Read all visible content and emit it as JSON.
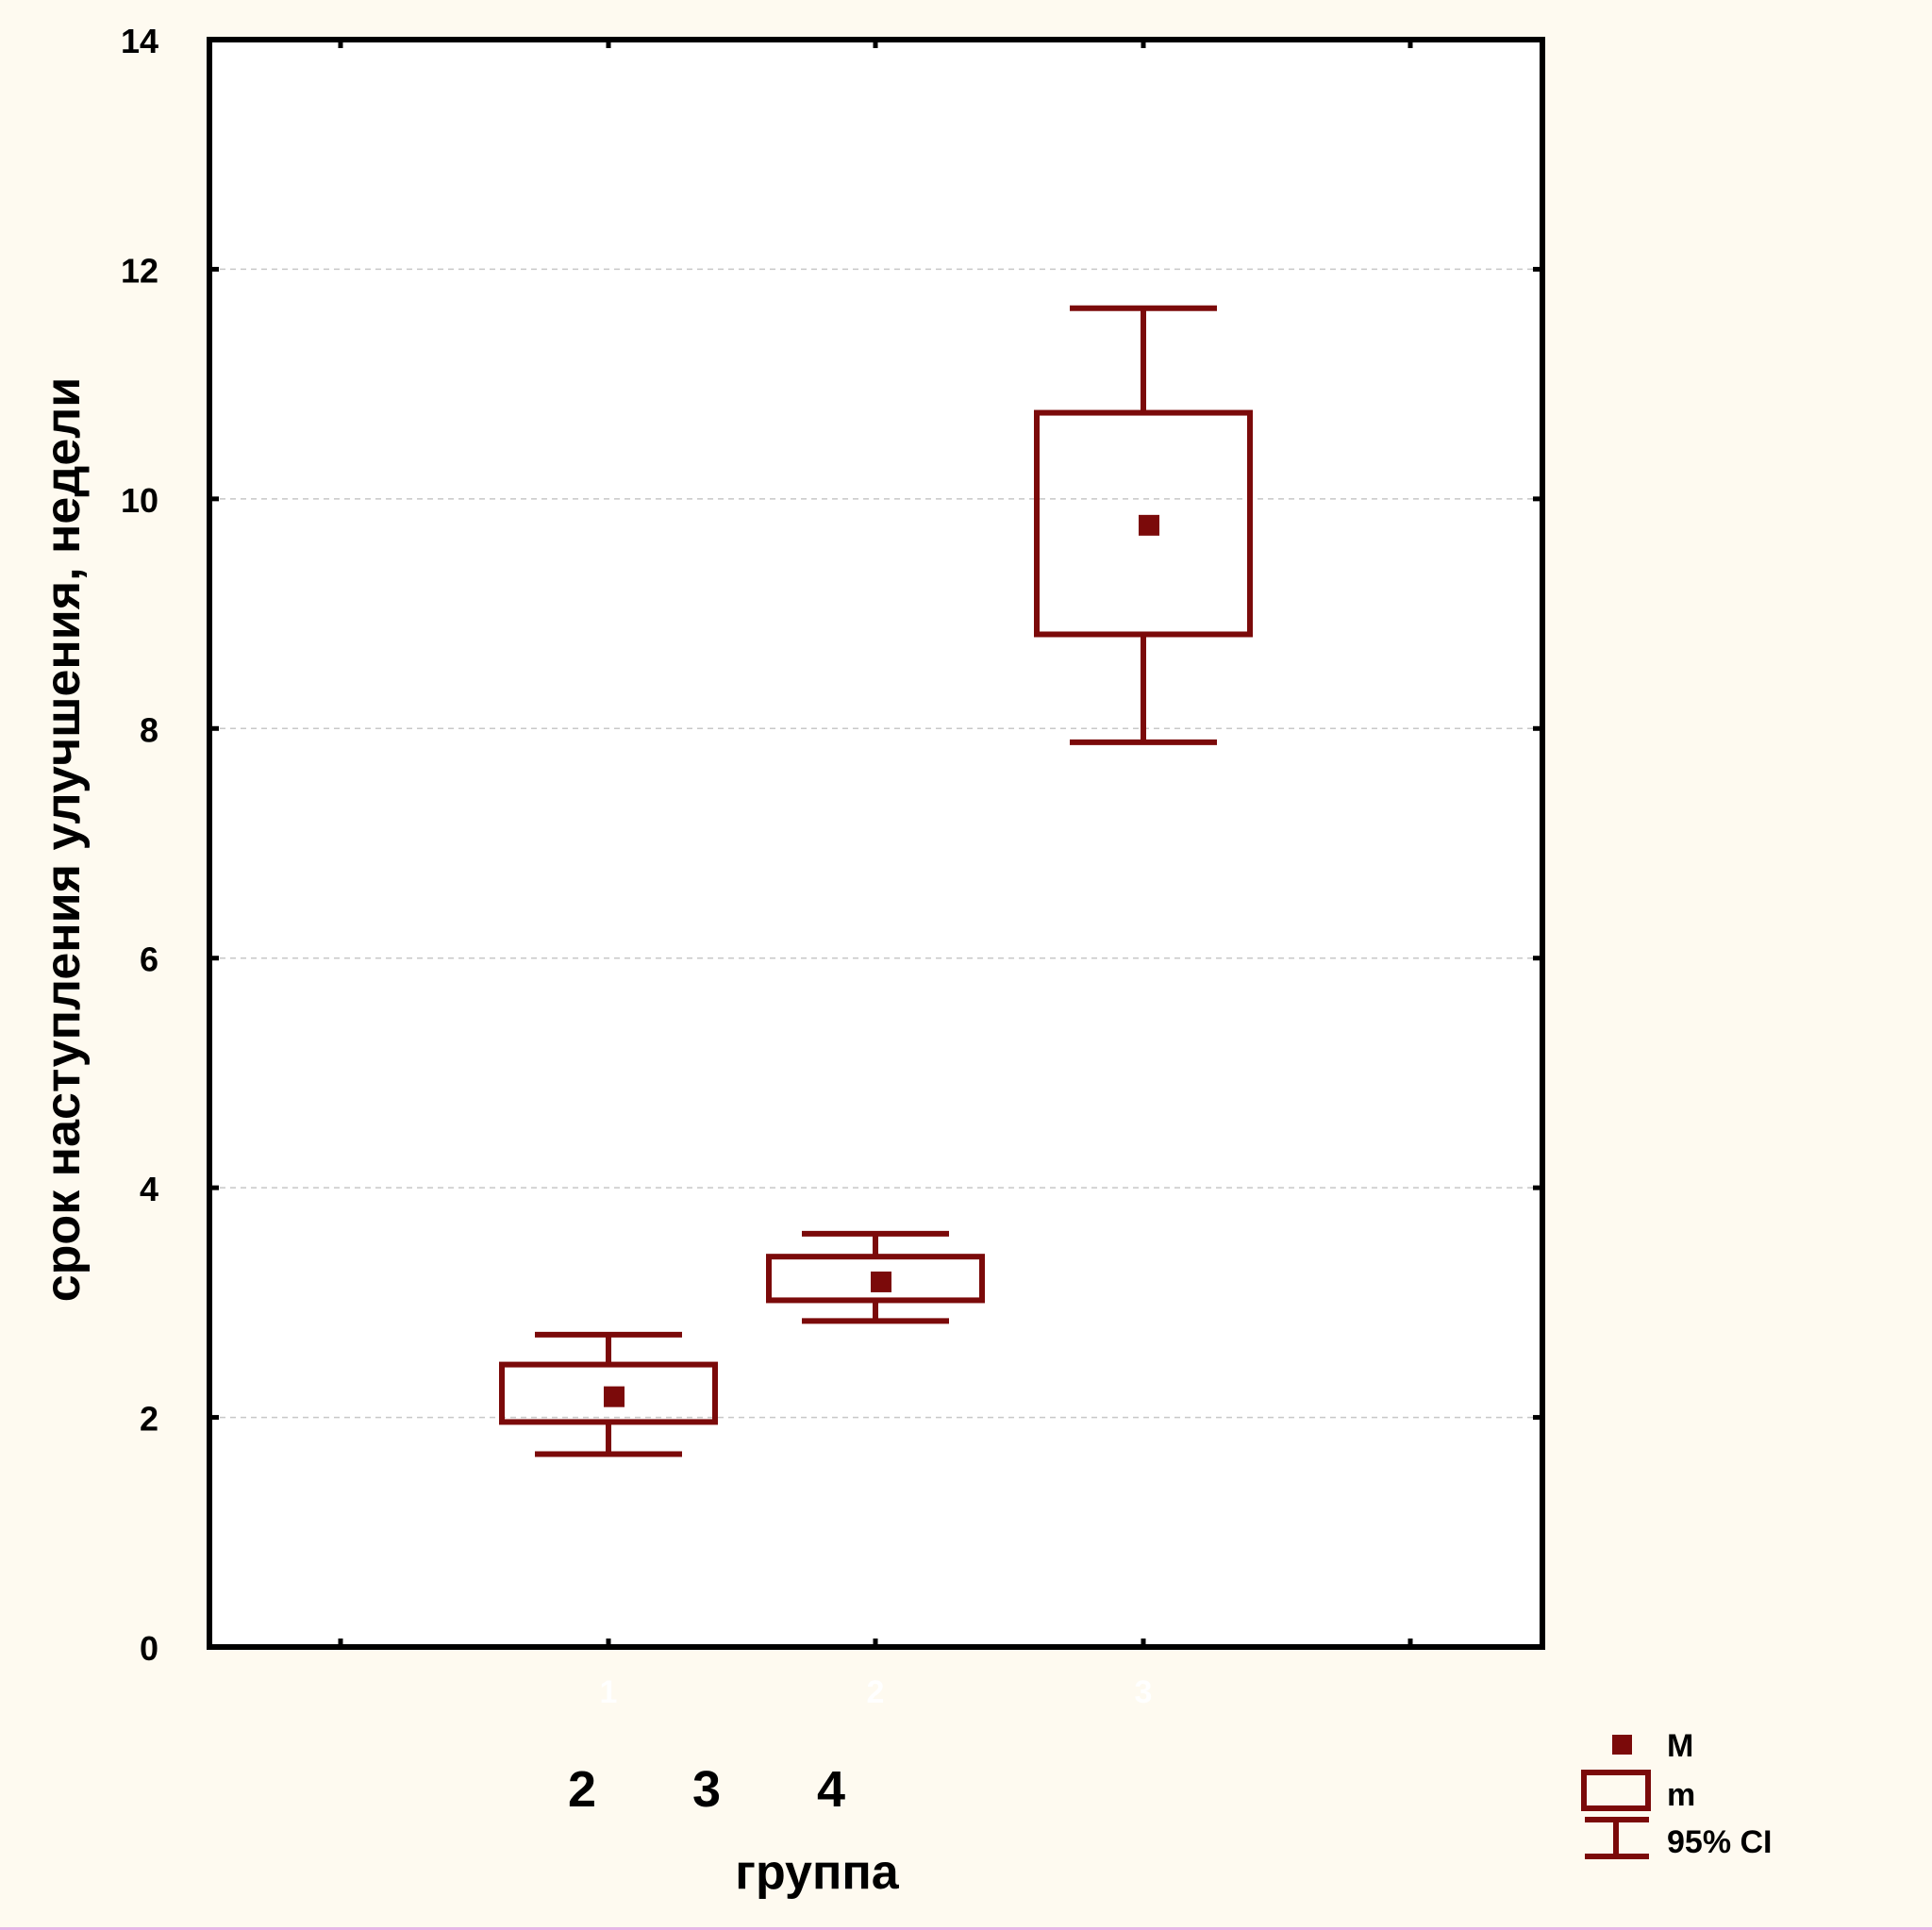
{
  "chart_data": {
    "type": "box",
    "ylabel": "срок наступления улучшения, недели",
    "xlabel": "группа",
    "ylim": [
      0,
      14
    ],
    "yticks": [
      0,
      2,
      4,
      6,
      8,
      10,
      12,
      14
    ],
    "grid": true,
    "categories": [
      "1",
      "2",
      "3"
    ],
    "group_labels": [
      "2",
      "3",
      "4"
    ],
    "series": [
      {
        "category": "1",
        "mean": 2.18,
        "m_low": 1.96,
        "m_high": 2.46,
        "ci_low": 1.68,
        "ci_high": 2.72
      },
      {
        "category": "2",
        "mean": 3.18,
        "m_low": 3.02,
        "m_high": 3.4,
        "ci_low": 2.84,
        "ci_high": 3.6
      },
      {
        "category": "3",
        "mean": 9.77,
        "m_low": 8.82,
        "m_high": 10.75,
        "ci_low": 7.88,
        "ci_high": 11.66
      }
    ],
    "legend": {
      "position": "bottom-right",
      "items": [
        "M",
        "m",
        "95% CI"
      ]
    },
    "colors": {
      "series": "#7b0a0a",
      "background": "#fefaf0",
      "plot_background": "#ffffff",
      "grid": "#c8c8c8"
    }
  }
}
